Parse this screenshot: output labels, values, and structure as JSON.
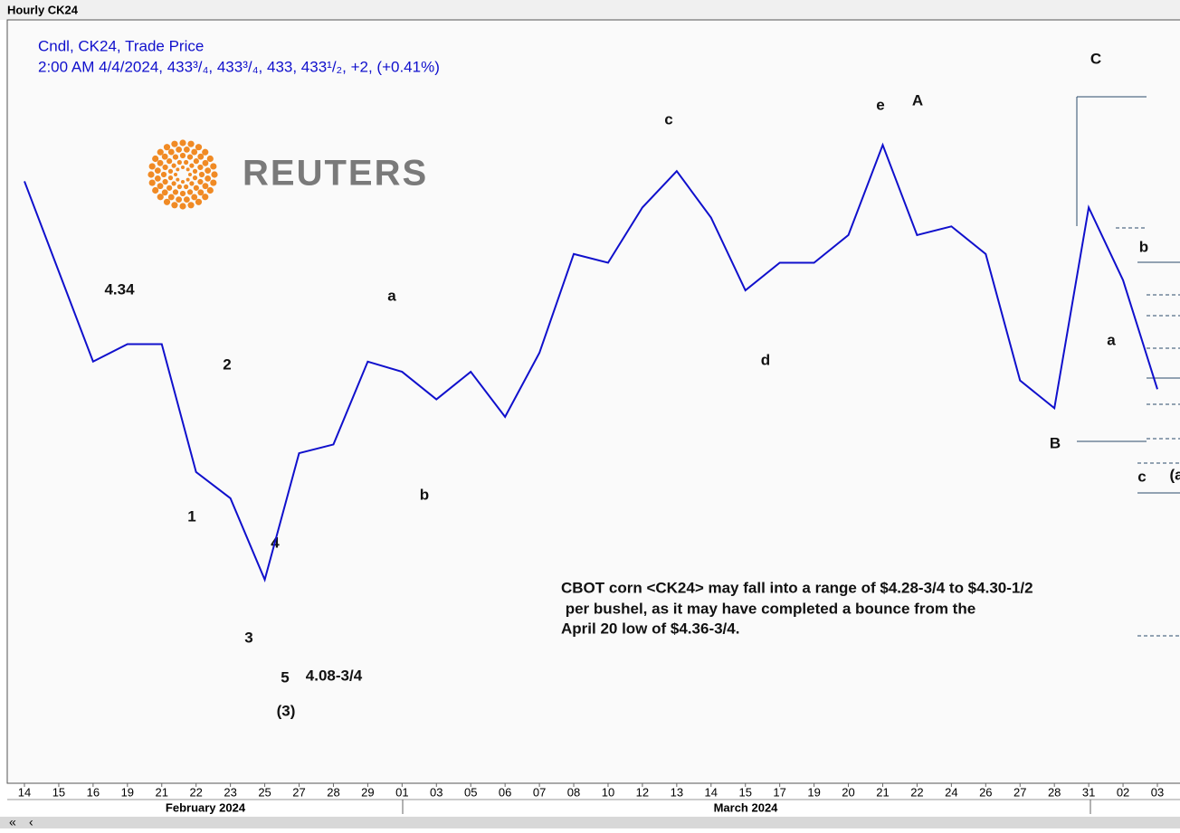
{
  "window_title": "Hourly CK24",
  "legend": {
    "line1": "Cndl, CK24, Trade Price",
    "line2": "2:00 AM 4/4/2024, 433³/₄, 433³/₄, 433, 433¹/₂, +2, (+0.41%)"
  },
  "logo": {
    "text": "REUTERS"
  },
  "scroll_controls": [
    "«",
    "‹"
  ],
  "chart_data": {
    "type": "line",
    "categories": [
      "14",
      "15",
      "16",
      "19",
      "21",
      "22",
      "23",
      "25",
      "27",
      "28",
      "29",
      "01",
      "03",
      "05",
      "06",
      "07",
      "08",
      "10",
      "12",
      "13",
      "14",
      "15",
      "17",
      "19",
      "20",
      "21",
      "22",
      "24",
      "26",
      "27",
      "28",
      "31",
      "02",
      "03"
    ],
    "values": [
      442.4,
      436.2,
      430,
      431.2,
      431.2,
      422.4,
      420.6,
      415,
      423.7,
      424.3,
      430,
      429.3,
      427.4,
      429.3,
      426.2,
      430.6,
      437.4,
      436.8,
      440.6,
      443.1,
      439.9,
      434.9,
      436.8,
      436.8,
      438.7,
      444.9,
      438.7,
      439.3,
      437.4,
      428.7,
      426.8,
      440.6,
      435.6,
      428.1
    ],
    "color": "#1010cc",
    "ylim": [
      401,
      453.5
    ],
    "x_groups": [
      "February 2024",
      "March 2024"
    ],
    "annotations": [
      "4.34",
      "2",
      "1",
      "3",
      "4",
      "5",
      "4.08-3/4",
      "(3)",
      "a",
      "b",
      "c",
      "d",
      "e",
      "A",
      "C",
      "b",
      "a",
      "B",
      "c",
      "(a"
    ],
    "comment": [
      "CBOT corn <CK24> may fall into a range of $4.28-3/4 to $4.30-1/2",
      " per bushel, as it may have completed a bounce from the",
      "April 20 low of $4.36-3/4."
    ]
  }
}
